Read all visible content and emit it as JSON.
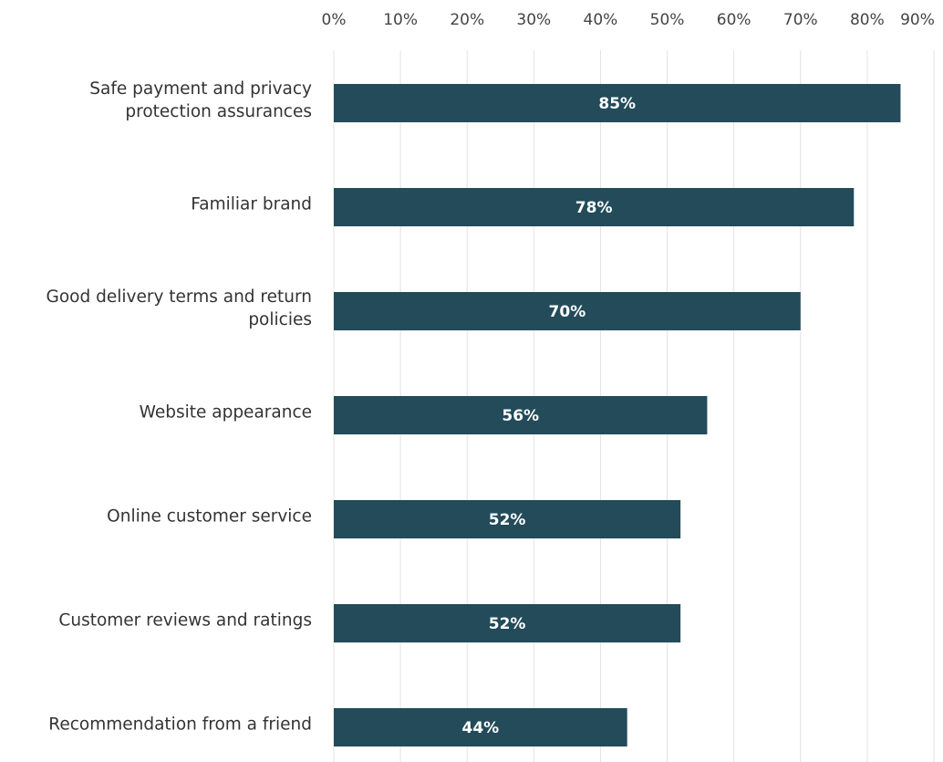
{
  "chart_data": {
    "type": "barh",
    "categories": [
      "Safe payment and privacy protection assurances",
      "Familiar brand",
      "Good delivery terms and return policies",
      "Website appearance",
      "Online customer service",
      "Customer reviews and ratings",
      "Recommendation from a friend"
    ],
    "values": [
      85,
      78,
      70,
      56,
      52,
      52,
      44
    ],
    "value_labels": [
      "85%",
      "78%",
      "70%",
      "56%",
      "52%",
      "52%",
      "44%"
    ],
    "color": "#234b5a",
    "xlim": [
      0,
      90
    ],
    "xticks": [
      {
        "value": 0,
        "label": "0%"
      },
      {
        "value": 10,
        "label": "10%"
      },
      {
        "value": 20,
        "label": "20%"
      },
      {
        "value": 30,
        "label": "30%"
      },
      {
        "value": 40,
        "label": "40%"
      },
      {
        "value": 50,
        "label": "50%"
      },
      {
        "value": 60,
        "label": "60%"
      },
      {
        "value": 70,
        "label": "70%"
      },
      {
        "value": 80,
        "label": "80%"
      },
      {
        "value": 90,
        "label": "90%"
      }
    ],
    "grid": true
  }
}
